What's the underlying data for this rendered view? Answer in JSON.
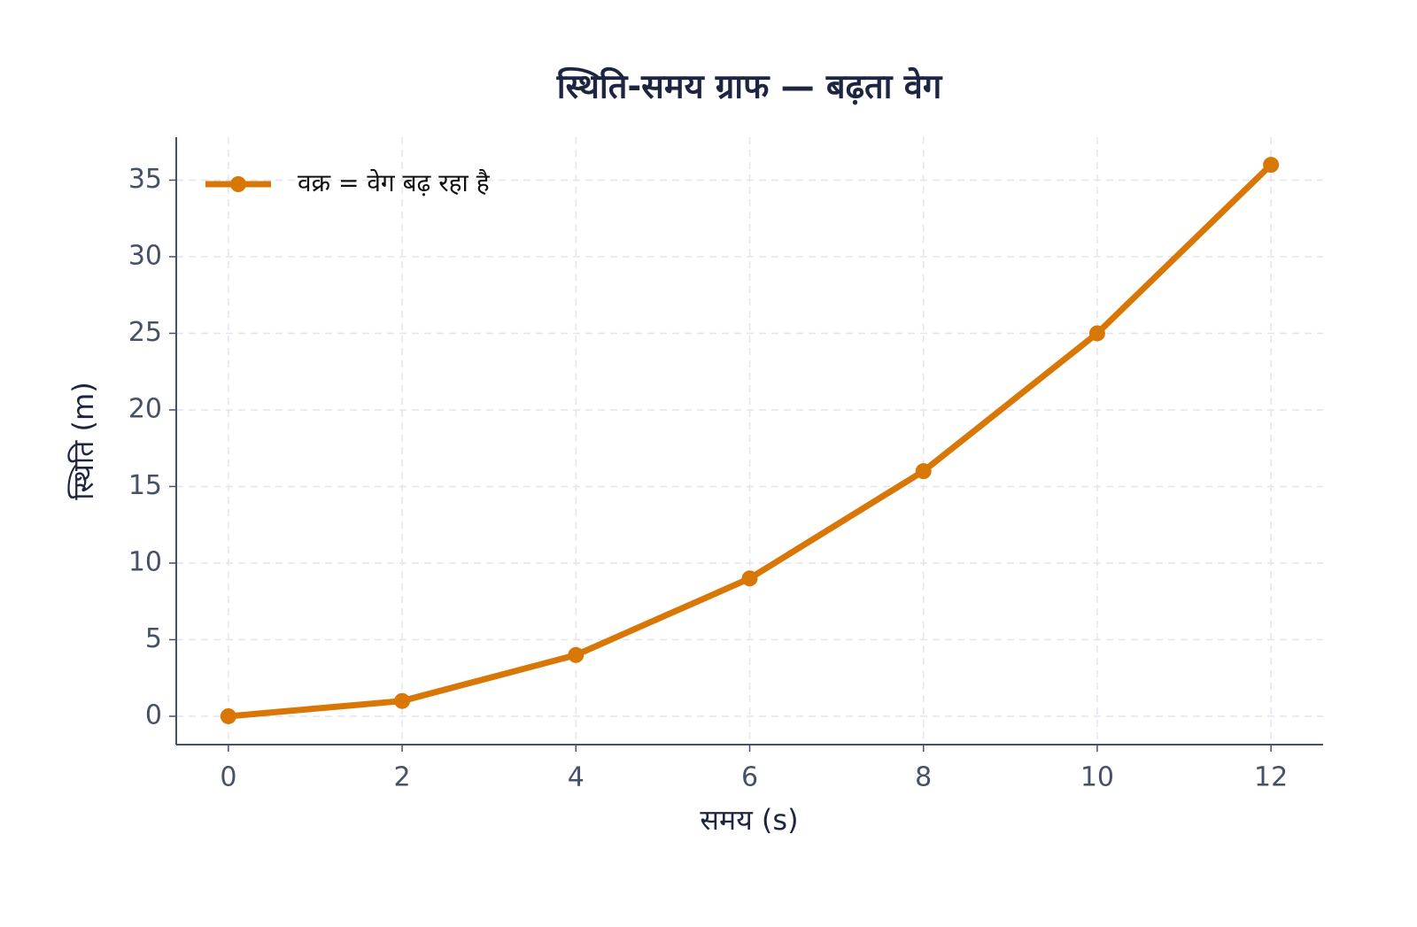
{
  "chart_data": {
    "type": "line",
    "title": "स्थिति-समय ग्राफ — बढ़ता वेग",
    "x_label": "समय (s)",
    "y_label": "स्थिति (m)",
    "x": [
      0,
      2,
      4,
      6,
      8,
      10,
      12
    ],
    "series": [
      {
        "name": "वक्र = वेग बढ़ रहा है",
        "color": "#d97706",
        "values": [
          0,
          1,
          4,
          9,
          16,
          25,
          36
        ]
      }
    ],
    "xlim": [
      -0.6,
      12.6
    ],
    "ylim": [
      -1.85,
      37.8
    ],
    "xticks": [
      0,
      2,
      4,
      6,
      8,
      10,
      12
    ],
    "yticks": [
      0,
      5,
      10,
      15,
      20,
      25,
      30,
      35
    ],
    "grid": true,
    "legend": "upper left"
  }
}
